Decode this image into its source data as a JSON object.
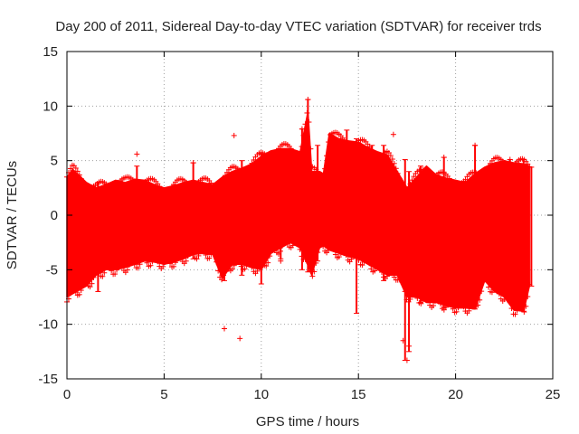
{
  "chart_data": {
    "type": "scatter",
    "title": "Day 200 of 2011, Sidereal Day-to-day VTEC variation (SDTVAR) for receiver trds",
    "xlabel": "GPS time / hours",
    "ylabel": "SDTVAR / TECUs",
    "xlim": [
      0,
      25
    ],
    "ylim": [
      -15,
      15
    ],
    "x_ticks": [
      0,
      5,
      10,
      15,
      20,
      25
    ],
    "y_ticks": [
      -15,
      -10,
      -5,
      0,
      5,
      10,
      15
    ],
    "x_tick_labels": [
      "0",
      "5",
      "10",
      "15",
      "20",
      "25"
    ],
    "y_tick_labels": [
      "-15",
      "-10",
      "-5",
      "0",
      "5",
      "10",
      "15"
    ],
    "grid": true,
    "series": [
      {
        "name": "SDTVAR",
        "color": "#ff0000",
        "marker": "plus",
        "envelope": {
          "x": [
            0.0,
            0.3,
            1.0,
            1.5,
            2.0,
            2.5,
            3.0,
            3.5,
            4.0,
            4.5,
            5.0,
            5.5,
            6.0,
            6.5,
            7.0,
            7.5,
            8.0,
            8.5,
            9.0,
            9.5,
            10.0,
            10.5,
            11.0,
            11.5,
            12.0,
            12.4,
            12.6,
            13.0,
            13.2,
            13.5,
            14.0,
            14.5,
            15.0,
            15.5,
            16.0,
            16.5,
            17.0,
            17.5,
            18.0,
            18.5,
            19.0,
            19.5,
            20.0,
            20.5,
            21.0,
            21.5,
            22.0,
            22.5,
            23.0,
            23.5,
            23.8
          ],
          "upper": [
            3.5,
            4.2,
            3.0,
            2.5,
            2.8,
            3.2,
            3.0,
            3.3,
            3.2,
            2.8,
            2.5,
            2.7,
            3.0,
            3.2,
            3.0,
            2.8,
            3.5,
            4.0,
            4.3,
            4.7,
            5.4,
            5.9,
            6.1,
            6.1,
            5.8,
            9.5,
            4.0,
            4.0,
            3.8,
            7.5,
            7.0,
            6.8,
            6.7,
            6.2,
            5.8,
            5.5,
            4.0,
            2.5,
            3.5,
            4.5,
            3.7,
            3.4,
            3.2,
            3.0,
            3.8,
            4.4,
            4.8,
            5.0,
            4.8,
            4.7,
            4.5
          ],
          "lower": [
            -7.5,
            -7.2,
            -6.5,
            -5.5,
            -5.0,
            -5.0,
            -4.8,
            -4.5,
            -4.2,
            -4.3,
            -4.5,
            -4.3,
            -4.0,
            -3.6,
            -3.5,
            -3.6,
            -5.8,
            -4.5,
            -4.5,
            -4.8,
            -5.0,
            -3.5,
            -3.0,
            -2.5,
            -3.0,
            -4.6,
            -5.5,
            -3.0,
            -2.8,
            -3.2,
            -3.5,
            -3.8,
            -4.0,
            -4.5,
            -5.0,
            -5.5,
            -5.5,
            -7.5,
            -7.5,
            -8.0,
            -8.0,
            -8.3,
            -8.5,
            -8.5,
            -8.6,
            -6.0,
            -7.0,
            -7.5,
            -8.7,
            -8.8,
            -6.5
          ]
        },
        "outliers": [
          [
            3.6,
            5.6
          ],
          [
            8.1,
            -10.4
          ],
          [
            8.6,
            7.3
          ],
          [
            8.9,
            -11.3
          ],
          [
            16.8,
            7.4
          ],
          [
            12.4,
            10.6
          ],
          [
            17.5,
            -13.3
          ],
          [
            17.3,
            -11.5
          ],
          [
            22.8,
            5.1
          ],
          [
            6.5,
            4.8
          ],
          [
            12.1,
            7.9
          ],
          [
            17.6,
            -12.0
          ],
          [
            19.4,
            5.3
          ],
          [
            21.0,
            6.4
          ],
          [
            11.0,
            -4.2
          ]
        ],
        "spikes": [
          [
            1.6,
            -7.0,
            3.0
          ],
          [
            3.6,
            -4.5,
            4.5
          ],
          [
            6.5,
            -4.0,
            4.8
          ],
          [
            8.1,
            -6.0,
            3.5
          ],
          [
            9.0,
            -5.5,
            5.0
          ],
          [
            10.0,
            -6.3,
            5.6
          ],
          [
            11.0,
            -4.0,
            6.1
          ],
          [
            12.1,
            -5.0,
            7.9
          ],
          [
            12.4,
            -5.2,
            10.6
          ],
          [
            12.9,
            -4.2,
            6.4
          ],
          [
            14.4,
            -3.0,
            7.8
          ],
          [
            14.9,
            -9.0,
            7.0
          ],
          [
            15.7,
            -4.5,
            6.4
          ],
          [
            16.3,
            -6.0,
            6.4
          ],
          [
            17.4,
            -13.3,
            5.1
          ],
          [
            17.6,
            -12.5,
            4.0
          ],
          [
            18.2,
            -8.0,
            4.5
          ],
          [
            19.4,
            -8.5,
            5.3
          ],
          [
            21.0,
            -8.6,
            6.4
          ],
          [
            22.8,
            -8.0,
            5.1
          ],
          [
            23.5,
            -8.8,
            5.1
          ],
          [
            23.9,
            -6.5,
            4.4
          ]
        ]
      }
    ]
  }
}
